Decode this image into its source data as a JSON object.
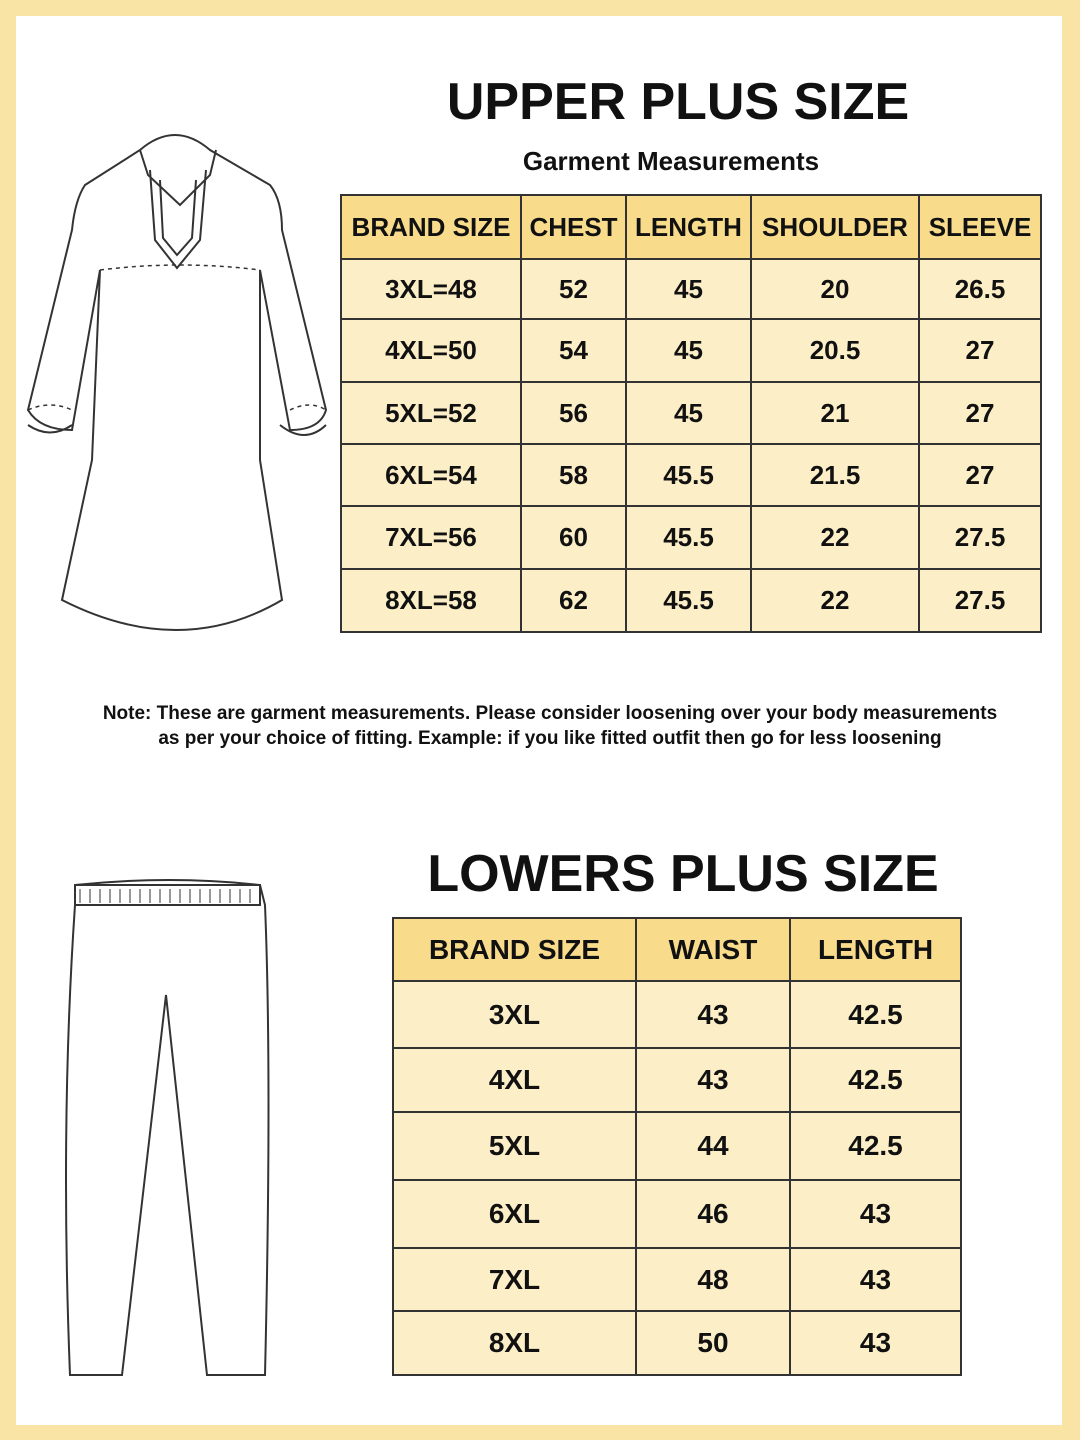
{
  "upper": {
    "title": "UPPER PLUS SIZE",
    "subtitle": "Garment Measurements",
    "table": {
      "header": [
        "BRAND SIZE",
        "CHEST",
        "LENGTH",
        "SHOULDER",
        "SLEEVE"
      ],
      "rows": [
        [
          "3XL=48",
          "52",
          "45",
          "20",
          "26.5"
        ],
        [
          "4XL=50",
          "54",
          "45",
          "20.5",
          "27"
        ],
        [
          "5XL=52",
          "56",
          "45",
          "21",
          "27"
        ],
        [
          "6XL=54",
          "58",
          "45.5",
          "21.5",
          "27"
        ],
        [
          "7XL=56",
          "60",
          "45.5",
          "22",
          "27.5"
        ],
        [
          "8XL=58",
          "62",
          "45.5",
          "22",
          "27.5"
        ]
      ]
    }
  },
  "note": [
    "Note: These are garment measurements. Please consider loosening over your body measurements",
    "as per your choice of fitting. Example: if you like fitted outfit then go for less loosening"
  ],
  "lower": {
    "title": "LOWERS PLUS SIZE",
    "table": {
      "header": [
        "BRAND SIZE",
        "WAIST",
        "LENGTH"
      ],
      "rows": [
        [
          "3XL",
          "43",
          "42.5"
        ],
        [
          "4XL",
          "43",
          "42.5"
        ],
        [
          "5XL",
          "44",
          "42.5"
        ],
        [
          "6XL",
          "46",
          "43"
        ],
        [
          "7XL",
          "48",
          "43"
        ],
        [
          "8XL",
          "50",
          "43"
        ]
      ]
    }
  }
}
